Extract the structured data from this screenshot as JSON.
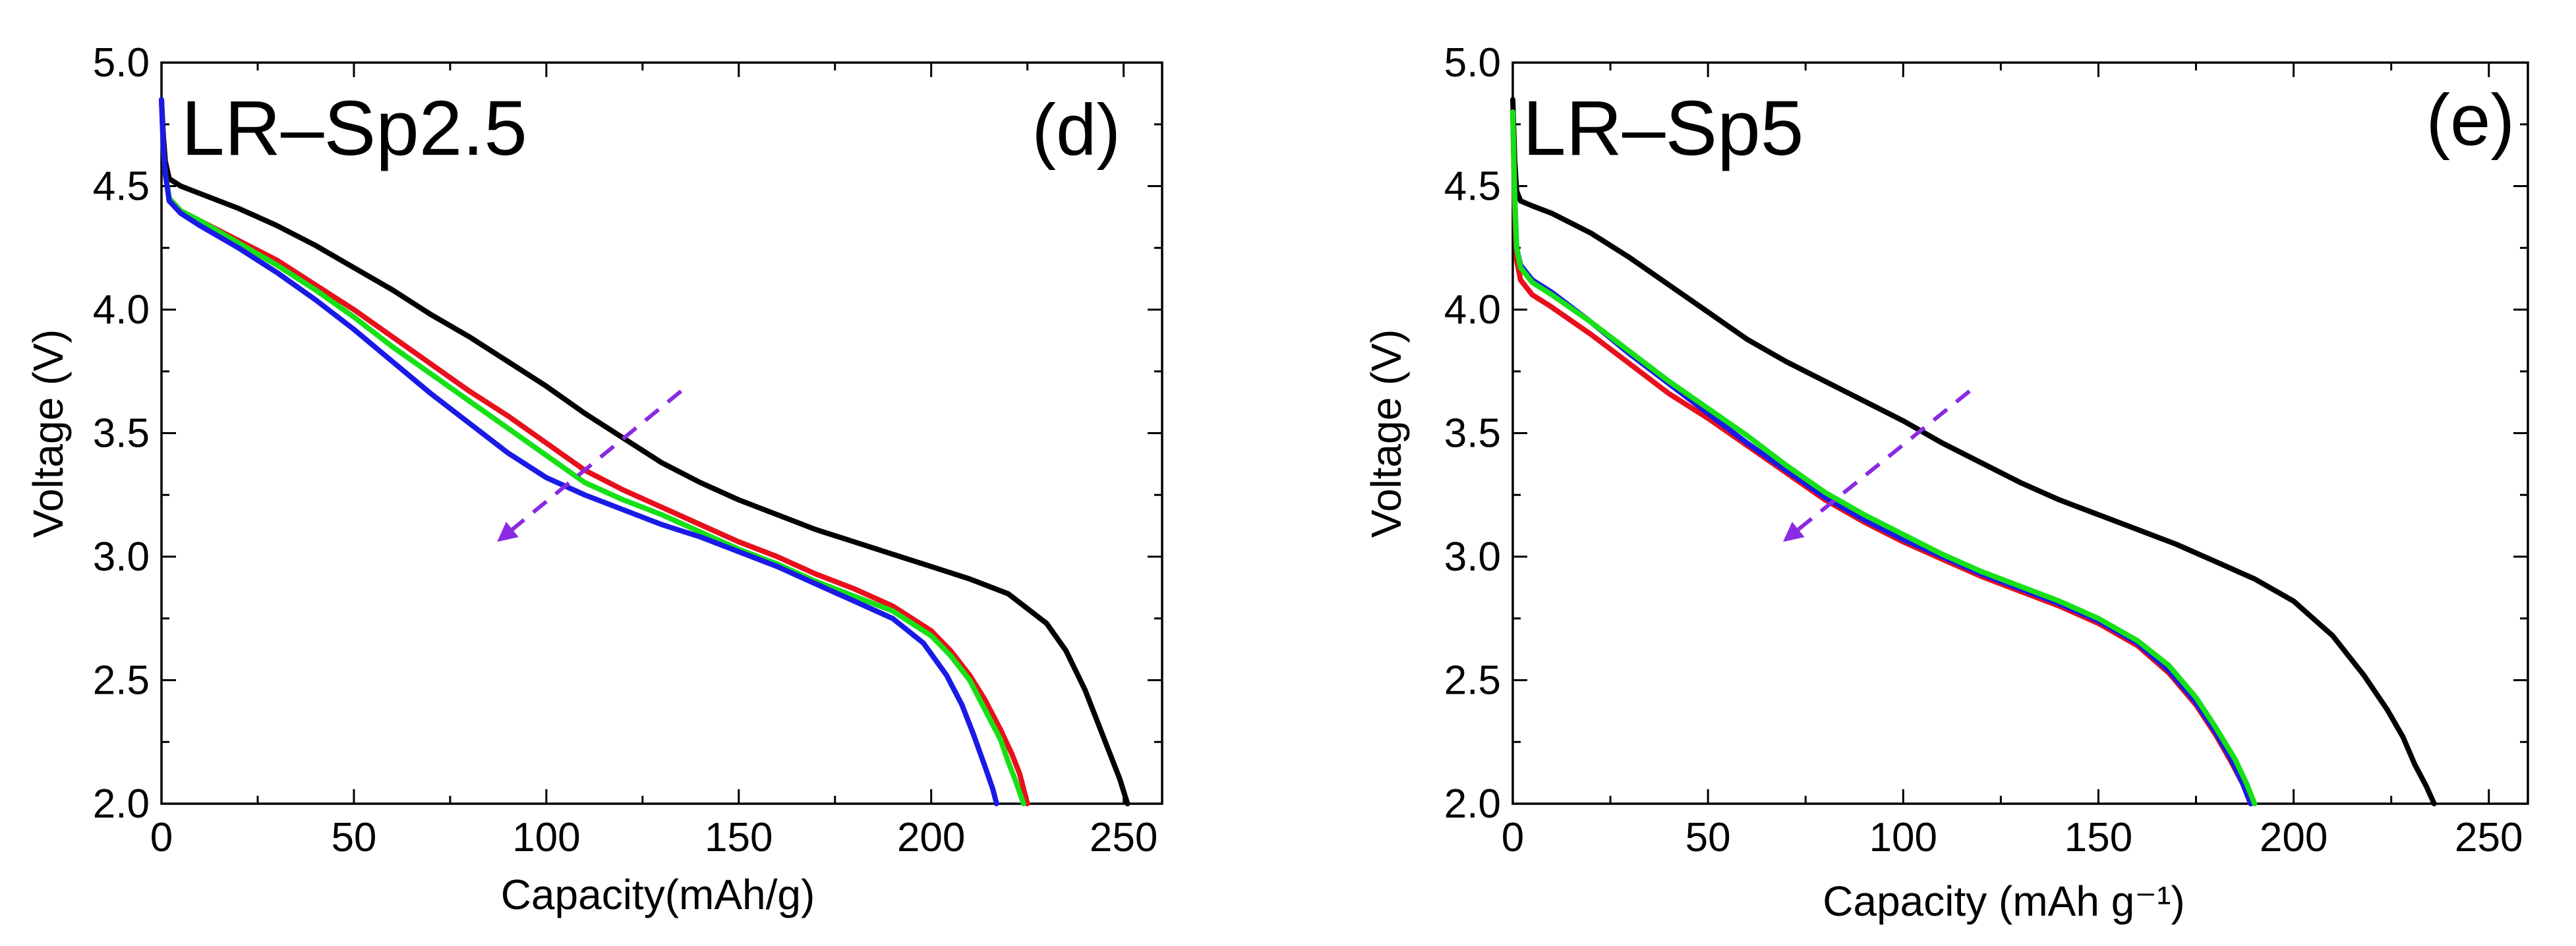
{
  "figure": {
    "colors": {
      "black": "#000000",
      "red": "#e8101c",
      "green": "#17e017",
      "blue": "#1a1ae6",
      "arrow": "#8a2be2"
    }
  },
  "chart_data": [
    {
      "type": "line",
      "panel": "d",
      "title": "LR–Sp2.5",
      "tag": "(d)",
      "xlabel": "Capacity(mAh/g)",
      "ylabel": "Voltage (V)",
      "xlim": [
        0,
        260
      ],
      "ylim": [
        2.0,
        5.0
      ],
      "xticks": [
        0,
        50,
        100,
        150,
        200,
        250
      ],
      "yticks": [
        2.0,
        2.5,
        3.0,
        3.5,
        4.0,
        4.5,
        5.0
      ],
      "xtick_labels": [
        "0",
        "50",
        "100",
        "150",
        "200",
        "250"
      ],
      "ytick_labels": [
        "2.0",
        "2.5",
        "3.0",
        "3.5",
        "4.0",
        "4.5",
        "5.0"
      ],
      "grid": false,
      "legend": "none",
      "series": [
        {
          "name": "black",
          "color": "#000000",
          "x": [
            0,
            0.5,
            1,
            2,
            5,
            10,
            20,
            30,
            40,
            50,
            60,
            70,
            80,
            90,
            100,
            110,
            120,
            130,
            140,
            150,
            160,
            170,
            180,
            190,
            200,
            210,
            220,
            230,
            235,
            240,
            244,
            247,
            249,
            251
          ],
          "y": [
            4.85,
            4.7,
            4.6,
            4.53,
            4.5,
            4.47,
            4.41,
            4.34,
            4.26,
            4.17,
            4.08,
            3.98,
            3.89,
            3.79,
            3.69,
            3.58,
            3.48,
            3.38,
            3.3,
            3.23,
            3.17,
            3.11,
            3.06,
            3.01,
            2.96,
            2.91,
            2.85,
            2.73,
            2.62,
            2.46,
            2.3,
            2.18,
            2.1,
            2.0
          ]
        },
        {
          "name": "red",
          "color": "#e8101c",
          "x": [
            0,
            0.5,
            1,
            2,
            5,
            10,
            20,
            30,
            40,
            50,
            60,
            70,
            80,
            90,
            100,
            110,
            120,
            130,
            140,
            150,
            160,
            170,
            180,
            190,
            200,
            205,
            210,
            214,
            218,
            221,
            223,
            225
          ],
          "y": [
            4.85,
            4.65,
            4.55,
            4.45,
            4.4,
            4.36,
            4.28,
            4.2,
            4.1,
            4.0,
            3.89,
            3.78,
            3.67,
            3.57,
            3.46,
            3.35,
            3.27,
            3.2,
            3.13,
            3.06,
            3.0,
            2.93,
            2.87,
            2.8,
            2.7,
            2.62,
            2.52,
            2.42,
            2.3,
            2.2,
            2.12,
            2.0
          ]
        },
        {
          "name": "green",
          "color": "#17e017",
          "x": [
            0,
            0.5,
            1,
            2,
            5,
            10,
            20,
            30,
            40,
            50,
            60,
            70,
            80,
            90,
            100,
            110,
            120,
            130,
            140,
            150,
            160,
            170,
            180,
            190,
            200,
            205,
            210,
            214,
            218,
            220,
            222,
            224
          ],
          "y": [
            4.85,
            4.65,
            4.55,
            4.45,
            4.4,
            4.36,
            4.27,
            4.18,
            4.08,
            3.97,
            3.85,
            3.74,
            3.63,
            3.52,
            3.41,
            3.3,
            3.23,
            3.17,
            3.1,
            3.03,
            2.97,
            2.9,
            2.84,
            2.78,
            2.68,
            2.6,
            2.5,
            2.38,
            2.26,
            2.17,
            2.09,
            2.0
          ]
        },
        {
          "name": "blue",
          "color": "#1a1ae6",
          "x": [
            0,
            0.5,
            1,
            2,
            5,
            10,
            20,
            30,
            40,
            50,
            60,
            70,
            80,
            90,
            100,
            110,
            120,
            130,
            140,
            150,
            160,
            170,
            180,
            190,
            198,
            204,
            208,
            211,
            214,
            216,
            217
          ],
          "y": [
            4.85,
            4.65,
            4.55,
            4.44,
            4.39,
            4.34,
            4.25,
            4.15,
            4.04,
            3.92,
            3.79,
            3.66,
            3.54,
            3.42,
            3.32,
            3.25,
            3.19,
            3.13,
            3.08,
            3.02,
            2.96,
            2.89,
            2.82,
            2.75,
            2.65,
            2.52,
            2.4,
            2.28,
            2.15,
            2.06,
            2.0
          ]
        }
      ],
      "annotations": [
        {
          "type": "dashed-arrow",
          "from": [
            135,
            3.67
          ],
          "to": [
            88,
            3.07
          ]
        }
      ]
    },
    {
      "type": "line",
      "panel": "e",
      "title": "LR–Sp5",
      "tag": "(e)",
      "xlabel": "Capacity (mAh g⁻¹)",
      "ylabel": "Voltage (V)",
      "xlim": [
        0,
        260
      ],
      "ylim": [
        2.0,
        5.0
      ],
      "xticks": [
        0,
        50,
        100,
        150,
        200,
        250
      ],
      "yticks": [
        2.0,
        2.5,
        3.0,
        3.5,
        4.0,
        4.5,
        5.0
      ],
      "xtick_labels": [
        "0",
        "50",
        "100",
        "150",
        "200",
        "250"
      ],
      "ytick_labels": [
        "2.0",
        "2.5",
        "3.0",
        "3.5",
        "4.0",
        "4.5",
        "5.0"
      ],
      "grid": false,
      "legend": "none",
      "series": [
        {
          "name": "black",
          "color": "#000000",
          "x": [
            0,
            0.5,
            1,
            2,
            5,
            10,
            20,
            30,
            40,
            50,
            60,
            70,
            80,
            90,
            100,
            110,
            120,
            130,
            140,
            150,
            160,
            170,
            180,
            190,
            200,
            210,
            218,
            224,
            228,
            231,
            234,
            236
          ],
          "y": [
            4.85,
            4.6,
            4.48,
            4.44,
            4.42,
            4.39,
            4.31,
            4.21,
            4.1,
            3.99,
            3.88,
            3.79,
            3.71,
            3.63,
            3.55,
            3.46,
            3.38,
            3.3,
            3.23,
            3.17,
            3.11,
            3.05,
            2.98,
            2.91,
            2.82,
            2.68,
            2.52,
            2.38,
            2.27,
            2.16,
            2.07,
            2.0
          ]
        },
        {
          "name": "red",
          "color": "#e8101c",
          "x": [
            0,
            0.5,
            1,
            2,
            5,
            10,
            20,
            30,
            40,
            50,
            60,
            70,
            80,
            90,
            100,
            110,
            120,
            130,
            140,
            150,
            160,
            168,
            175,
            180,
            184,
            187,
            189
          ],
          "y": [
            4.8,
            4.4,
            4.2,
            4.12,
            4.06,
            4.01,
            3.9,
            3.78,
            3.66,
            3.56,
            3.45,
            3.34,
            3.23,
            3.14,
            3.06,
            2.99,
            2.92,
            2.86,
            2.8,
            2.73,
            2.64,
            2.53,
            2.4,
            2.28,
            2.17,
            2.08,
            2.0
          ]
        },
        {
          "name": "blue",
          "color": "#1a1ae6",
          "x": [
            0,
            0.5,
            1,
            2,
            5,
            10,
            20,
            30,
            40,
            50,
            60,
            70,
            80,
            90,
            100,
            110,
            120,
            130,
            140,
            150,
            160,
            168,
            175,
            180,
            184,
            187,
            189
          ],
          "y": [
            4.8,
            4.45,
            4.25,
            4.18,
            4.12,
            4.07,
            3.95,
            3.82,
            3.7,
            3.58,
            3.46,
            3.35,
            3.24,
            3.15,
            3.07,
            3.0,
            2.93,
            2.87,
            2.81,
            2.74,
            2.65,
            2.54,
            2.41,
            2.29,
            2.18,
            2.08,
            2.0
          ]
        },
        {
          "name": "green",
          "color": "#17e017",
          "x": [
            0,
            0.5,
            1,
            2,
            5,
            10,
            20,
            30,
            40,
            50,
            60,
            70,
            80,
            90,
            100,
            110,
            120,
            130,
            140,
            150,
            160,
            168,
            175,
            180,
            185,
            188,
            190
          ],
          "y": [
            4.8,
            4.45,
            4.25,
            4.17,
            4.11,
            4.06,
            3.95,
            3.83,
            3.71,
            3.6,
            3.49,
            3.37,
            3.26,
            3.17,
            3.09,
            3.01,
            2.94,
            2.88,
            2.82,
            2.75,
            2.66,
            2.56,
            2.43,
            2.31,
            2.18,
            2.08,
            2.0
          ]
        }
      ],
      "annotations": [
        {
          "type": "dashed-arrow",
          "from": [
            117,
            3.67
          ],
          "to": [
            70,
            3.07
          ]
        }
      ]
    }
  ]
}
